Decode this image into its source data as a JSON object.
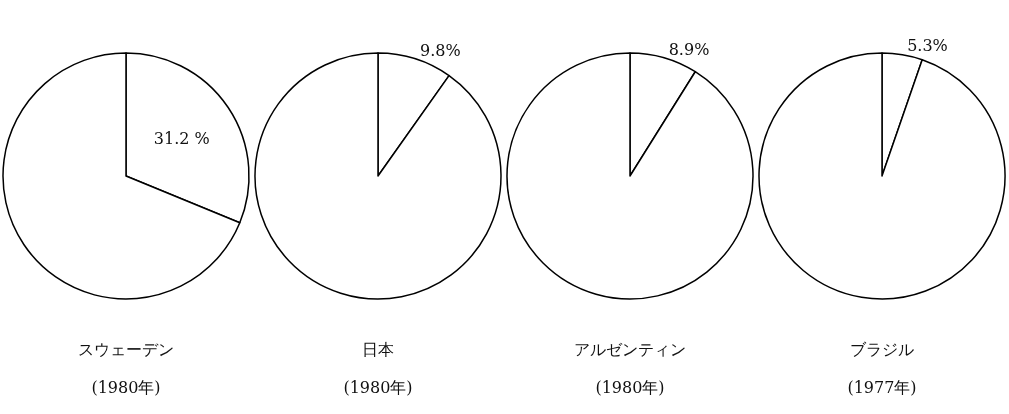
{
  "chart_data": [
    {
      "type": "pie",
      "title": "スウェーデン",
      "subtitle": "(1980年)",
      "categories": [
        null,
        null
      ],
      "values": [
        31.2,
        68.8
      ],
      "colors": [
        "#ffffff",
        "#ffffff"
      ],
      "value_labels": [
        "31.2 %",
        null
      ]
    },
    {
      "type": "pie",
      "title": "日本",
      "subtitle": "(1980年)",
      "categories": [
        null,
        null
      ],
      "values": [
        9.8,
        90.2
      ],
      "colors": [
        "#ffffff",
        "#ffffff"
      ],
      "value_labels": [
        "9.8%",
        null
      ]
    },
    {
      "type": "pie",
      "title": "アルゼンティン",
      "subtitle": "(1980年)",
      "categories": [
        null,
        null
      ],
      "values": [
        8.9,
        91.1
      ],
      "colors": [
        "#ffffff",
        "#ffffff"
      ],
      "value_labels": [
        "8.9%",
        null
      ]
    },
    {
      "type": "pie",
      "title": "ブラジル",
      "subtitle": "(1977年)",
      "categories": [
        null,
        null
      ],
      "values": [
        5.3,
        94.7
      ],
      "colors": [
        "#ffffff",
        "#ffffff"
      ],
      "value_labels": [
        "5.3%",
        null
      ]
    }
  ]
}
